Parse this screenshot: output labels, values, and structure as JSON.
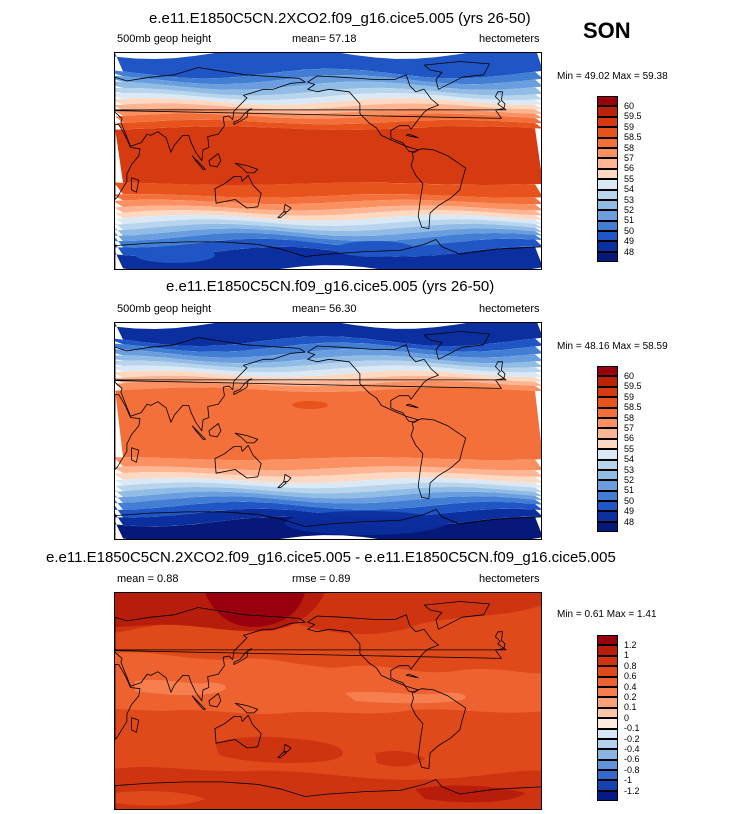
{
  "season": "SON",
  "panels": [
    {
      "title": "e.e11.E1850C5CN.2XCO2.f09_g16.cice5.005 (yrs 26-50)",
      "left_label": "500mb geop height",
      "center_label": "mean=  57.18",
      "right_label": "hectometers",
      "minmax": "Min =  49.02 Max =  59.38",
      "colorbar": {
        "labels": [
          "60",
          "59.5",
          "59",
          "58.5",
          "58",
          "57",
          "56",
          "55",
          "54",
          "53",
          "52",
          "51",
          "50",
          "49",
          "48"
        ],
        "colors": [
          "#99000d",
          "#bb2309",
          "#d63a10",
          "#e8521c",
          "#f4703a",
          "#fb9060",
          "#fdb594",
          "#fed9c2",
          "#dbe9f6",
          "#b9d5ee",
          "#91bce5",
          "#6a9ede",
          "#427ed4",
          "#1f55c4",
          "#0b2f9e",
          "#06187a"
        ]
      },
      "chart_data": {
        "type": "heatmap",
        "variable": "500mb geop height",
        "units": "hectometers",
        "mean": 57.18,
        "min": 49.02,
        "max": 59.38,
        "levels": [
          48,
          49,
          50,
          51,
          52,
          53,
          54,
          55,
          56,
          57,
          58,
          58.5,
          59,
          59.5,
          60
        ]
      }
    },
    {
      "title": "e.e11.E1850C5CN.f09_g16.cice5.005 (yrs 26-50)",
      "left_label": "500mb geop height",
      "center_label": "mean=  56.30",
      "right_label": "hectometers",
      "minmax": "Min =  48.16 Max =  58.59",
      "colorbar": {
        "labels": [
          "60",
          "59.5",
          "59",
          "58.5",
          "58",
          "57",
          "56",
          "55",
          "54",
          "53",
          "52",
          "51",
          "50",
          "49",
          "48"
        ],
        "colors": [
          "#99000d",
          "#bb2309",
          "#d63a10",
          "#e8521c",
          "#f4703a",
          "#fb9060",
          "#fdb594",
          "#fed9c2",
          "#dbe9f6",
          "#b9d5ee",
          "#91bce5",
          "#6a9ede",
          "#427ed4",
          "#1f55c4",
          "#0b2f9e",
          "#06187a"
        ]
      },
      "chart_data": {
        "type": "heatmap",
        "variable": "500mb geop height",
        "units": "hectometers",
        "mean": 56.3,
        "min": 48.16,
        "max": 58.59,
        "levels": [
          48,
          49,
          50,
          51,
          52,
          53,
          54,
          55,
          56,
          57,
          58,
          58.5,
          59,
          59.5,
          60
        ]
      }
    },
    {
      "title": "e.e11.E1850C5CN.2XCO2.f09_g16.cice5.005 - e.e11.E1850C5CN.f09_g16.cice5.005",
      "left_label": "mean =   0.88",
      "center_label": "rmse =   0.89",
      "right_label": "hectometers",
      "minmax": "Min =  0.61 Max =  1.41",
      "colorbar": {
        "labels": [
          "1.2",
          "1",
          "0.8",
          "0.6",
          "0.4",
          "0.2",
          "0.1",
          "0",
          "-0.1",
          "-0.2",
          "-0.4",
          "-0.6",
          "-0.8",
          "-1",
          "-1.2"
        ],
        "colors": [
          "#99000d",
          "#b81d0b",
          "#cf3411",
          "#e04a1a",
          "#ee6230",
          "#f77f4f",
          "#fca079",
          "#fec7a8",
          "#fdebe0",
          "#d9e7f5",
          "#b3d0ee",
          "#8bb4e4",
          "#5f93da",
          "#3568cc",
          "#1540b0",
          "#061a85"
        ]
      },
      "chart_data": {
        "type": "heatmap",
        "variable": "500mb geop height difference",
        "units": "hectometers",
        "mean": 0.88,
        "rmse": 0.89,
        "min": 0.61,
        "max": 1.41,
        "levels": [
          -1.2,
          -1,
          -0.8,
          -0.6,
          -0.4,
          -0.2,
          -0.1,
          0,
          0.1,
          0.2,
          0.4,
          0.6,
          0.8,
          1,
          1.2
        ]
      }
    }
  ]
}
